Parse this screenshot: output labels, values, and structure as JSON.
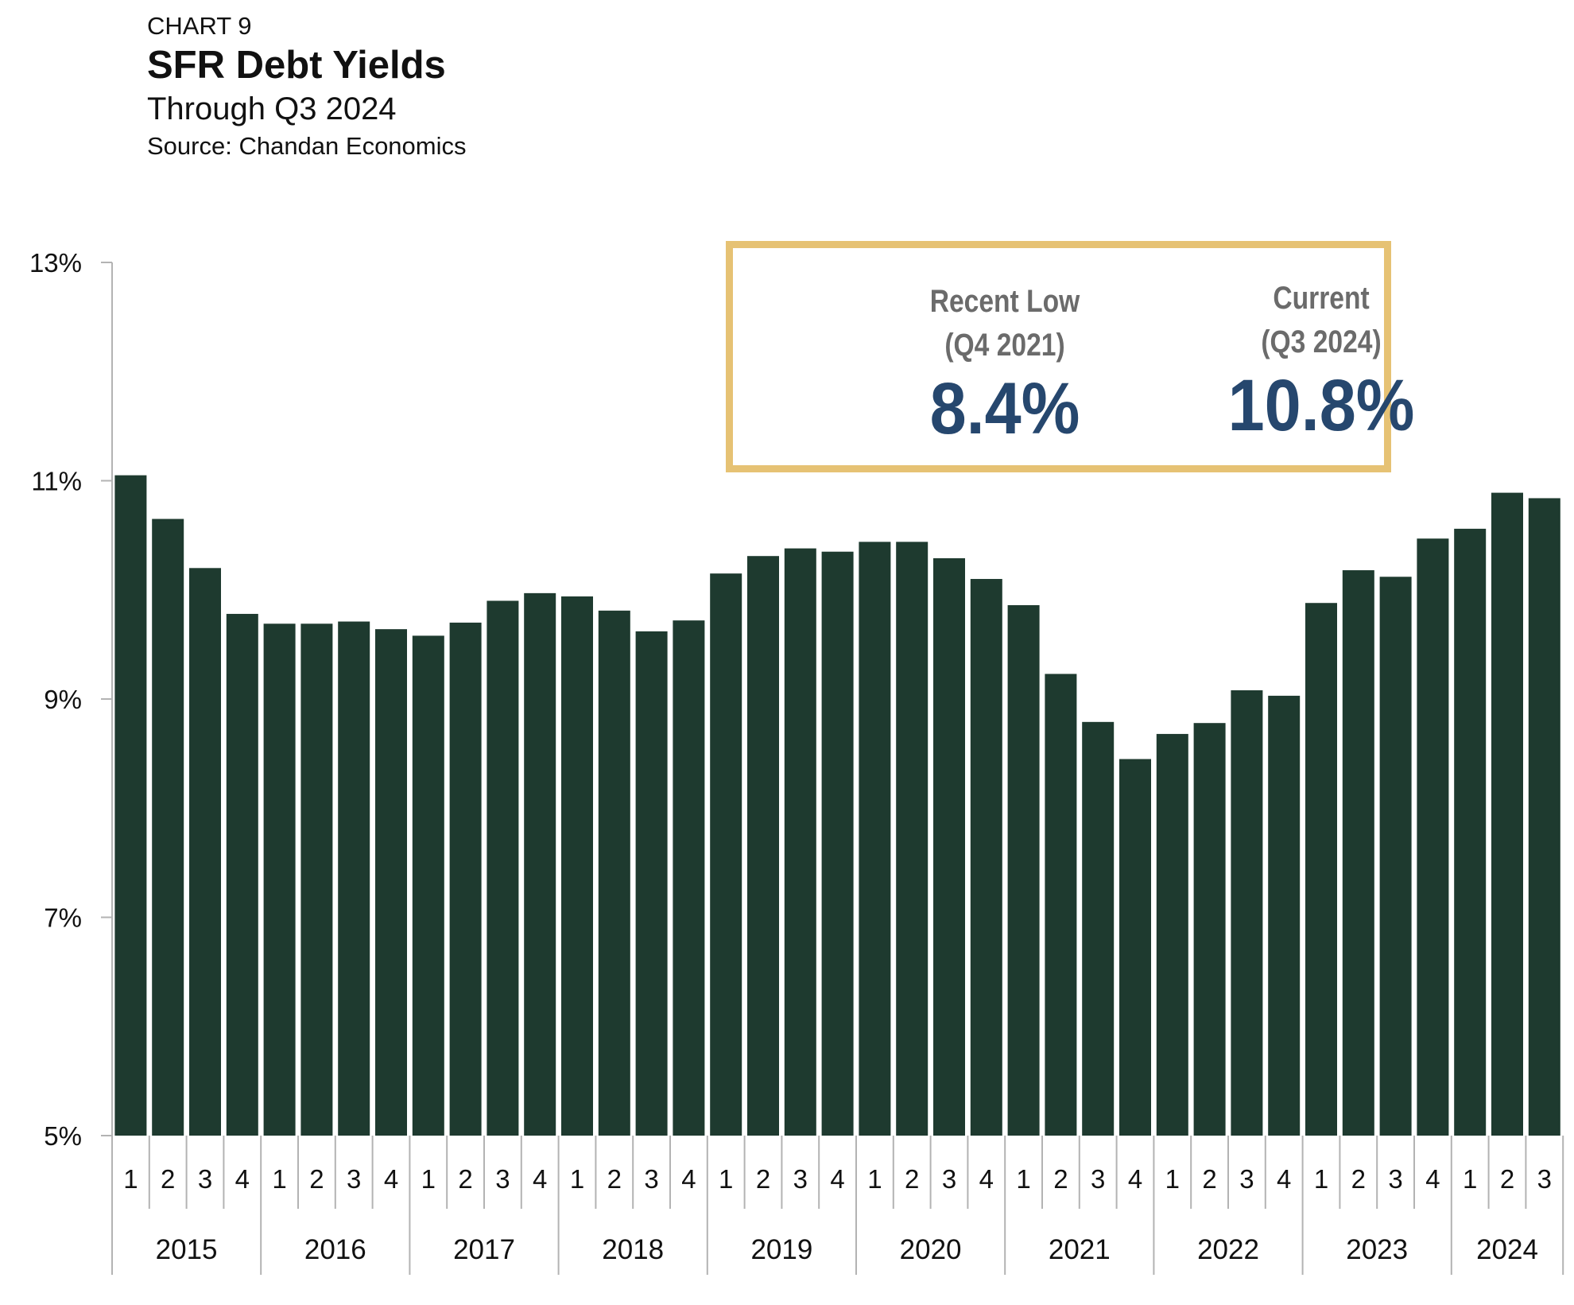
{
  "header": {
    "label": "CHART 9",
    "title": "SFR Debt Yields",
    "subtitle": "Through Q3 2024",
    "source": "Source: Chandan Economics"
  },
  "callout": {
    "left": {
      "label_line1": "Recent Low",
      "label_line2": "(Q4 2021)",
      "value": "8.4%"
    },
    "right": {
      "label_line1": "Current",
      "label_line2": "(Q3 2024)",
      "value": "10.8%"
    }
  },
  "colors": {
    "bar": "#1e3a2f",
    "callout_border": "#e6c274",
    "callout_value": "#26476e",
    "callout_label": "#6b6b6b",
    "axis": "#b3b3b3"
  },
  "chart_data": {
    "type": "bar",
    "title": "SFR Debt Yields",
    "ylim": [
      5,
      13
    ],
    "yticks": [
      5,
      7,
      9,
      11,
      13
    ],
    "ytick_labels": [
      "5%",
      "7%",
      "9%",
      "11%",
      "13%"
    ],
    "grid": false,
    "years": [
      {
        "year": "2015",
        "quarters": [
          "1",
          "2",
          "3",
          "4"
        ]
      },
      {
        "year": "2016",
        "quarters": [
          "1",
          "2",
          "3",
          "4"
        ]
      },
      {
        "year": "2017",
        "quarters": [
          "1",
          "2",
          "3",
          "4"
        ]
      },
      {
        "year": "2018",
        "quarters": [
          "1",
          "2",
          "3",
          "4"
        ]
      },
      {
        "year": "2019",
        "quarters": [
          "1",
          "2",
          "3",
          "4"
        ]
      },
      {
        "year": "2020",
        "quarters": [
          "1",
          "2",
          "3",
          "4"
        ]
      },
      {
        "year": "2021",
        "quarters": [
          "1",
          "2",
          "3",
          "4"
        ]
      },
      {
        "year": "2022",
        "quarters": [
          "1",
          "2",
          "3",
          "4"
        ]
      },
      {
        "year": "2023",
        "quarters": [
          "1",
          "2",
          "3",
          "4"
        ]
      },
      {
        "year": "2024",
        "quarters": [
          "1",
          "2",
          "3"
        ]
      }
    ],
    "values": [
      11.05,
      10.65,
      10.2,
      9.78,
      9.69,
      9.69,
      9.71,
      9.64,
      9.58,
      9.7,
      9.9,
      9.97,
      9.94,
      9.81,
      9.62,
      9.72,
      10.15,
      10.31,
      10.38,
      10.35,
      10.44,
      10.44,
      10.29,
      10.1,
      9.86,
      9.23,
      8.79,
      8.45,
      8.68,
      8.78,
      9.08,
      9.03,
      9.88,
      10.18,
      10.12,
      10.47,
      10.56,
      10.89,
      10.84
    ]
  }
}
